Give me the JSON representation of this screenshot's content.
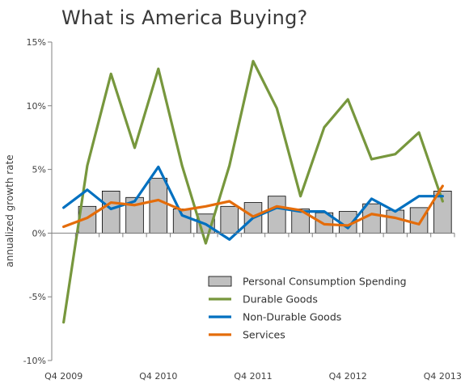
{
  "chart_data": {
    "type": "bar+line",
    "title": "What is America Buying?",
    "ylabel": "annualized growth rate",
    "xlabel": "",
    "ylim": [
      -10,
      15
    ],
    "y_ticks": [
      -10,
      -5,
      0,
      5,
      10,
      15
    ],
    "y_tick_labels": [
      "-10%",
      "-5%",
      "0%",
      "5%",
      "10%",
      "15%"
    ],
    "categories": [
      "Q4 2009",
      "Q1 2010",
      "Q2 2010",
      "Q3 2010",
      "Q4 2010",
      "Q1 2011",
      "Q2 2011",
      "Q3 2011",
      "Q4 2011",
      "Q1 2012",
      "Q2 2012",
      "Q3 2012",
      "Q4 2012",
      "Q1 2013",
      "Q2 2013",
      "Q3 2013",
      "Q4 2013"
    ],
    "x_tick_labels": [
      "Q4 2009",
      "Q4 2010",
      "Q4 2011",
      "Q4 2012",
      "Q4 2013"
    ],
    "grid": false,
    "legend_position": "bottom-right",
    "series": [
      {
        "name": "Personal Consumption Spending",
        "kind": "bar",
        "color": "#c0c0c0",
        "values": [
          null,
          2.1,
          3.3,
          2.8,
          4.3,
          1.9,
          1.5,
          2.1,
          2.4,
          2.9,
          1.9,
          1.6,
          1.7,
          2.3,
          1.8,
          2.0,
          3.3
        ]
      },
      {
        "name": "Durable Goods",
        "kind": "line",
        "color": "#77973d",
        "values": [
          -7.0,
          5.3,
          12.5,
          6.7,
          12.9,
          5.3,
          -0.8,
          5.3,
          13.5,
          9.8,
          2.9,
          8.3,
          10.5,
          5.8,
          6.2,
          7.9,
          2.5
        ]
      },
      {
        "name": "Non-Durable Goods",
        "kind": "line",
        "color": "#0070c0",
        "values": [
          2.0,
          3.4,
          1.9,
          2.5,
          5.2,
          1.4,
          0.7,
          -0.5,
          1.2,
          2.0,
          1.7,
          1.7,
          0.4,
          2.7,
          1.7,
          2.9,
          2.9
        ]
      },
      {
        "name": "Services",
        "kind": "line",
        "color": "#e46c0a",
        "values": [
          0.5,
          1.2,
          2.4,
          2.2,
          2.6,
          1.8,
          2.1,
          2.5,
          1.3,
          2.1,
          1.8,
          0.7,
          0.6,
          1.5,
          1.2,
          0.7,
          3.7
        ]
      }
    ]
  }
}
